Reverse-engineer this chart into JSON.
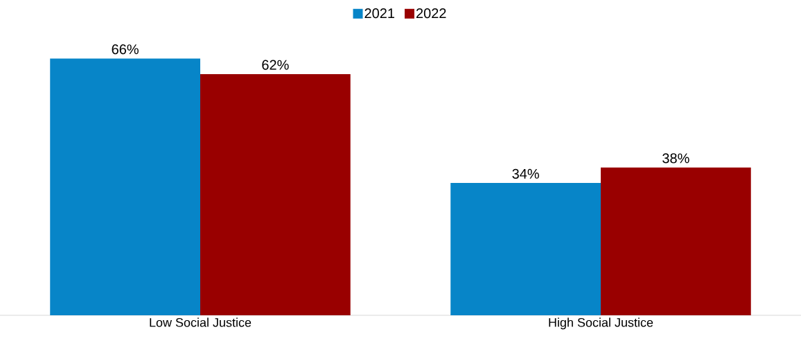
{
  "chart_data": {
    "type": "bar",
    "categories": [
      "Low Social Justice",
      "High Social Justice"
    ],
    "legend": "top",
    "series": [
      {
        "name": "2021",
        "color": "#0785c8",
        "values": [
          66,
          34
        ],
        "value_labels": [
          "66%",
          "34%"
        ]
      },
      {
        "name": "2022",
        "color": "#990000",
        "values": [
          62,
          38
        ],
        "value_labels": [
          "62%",
          "38%"
        ]
      }
    ]
  }
}
